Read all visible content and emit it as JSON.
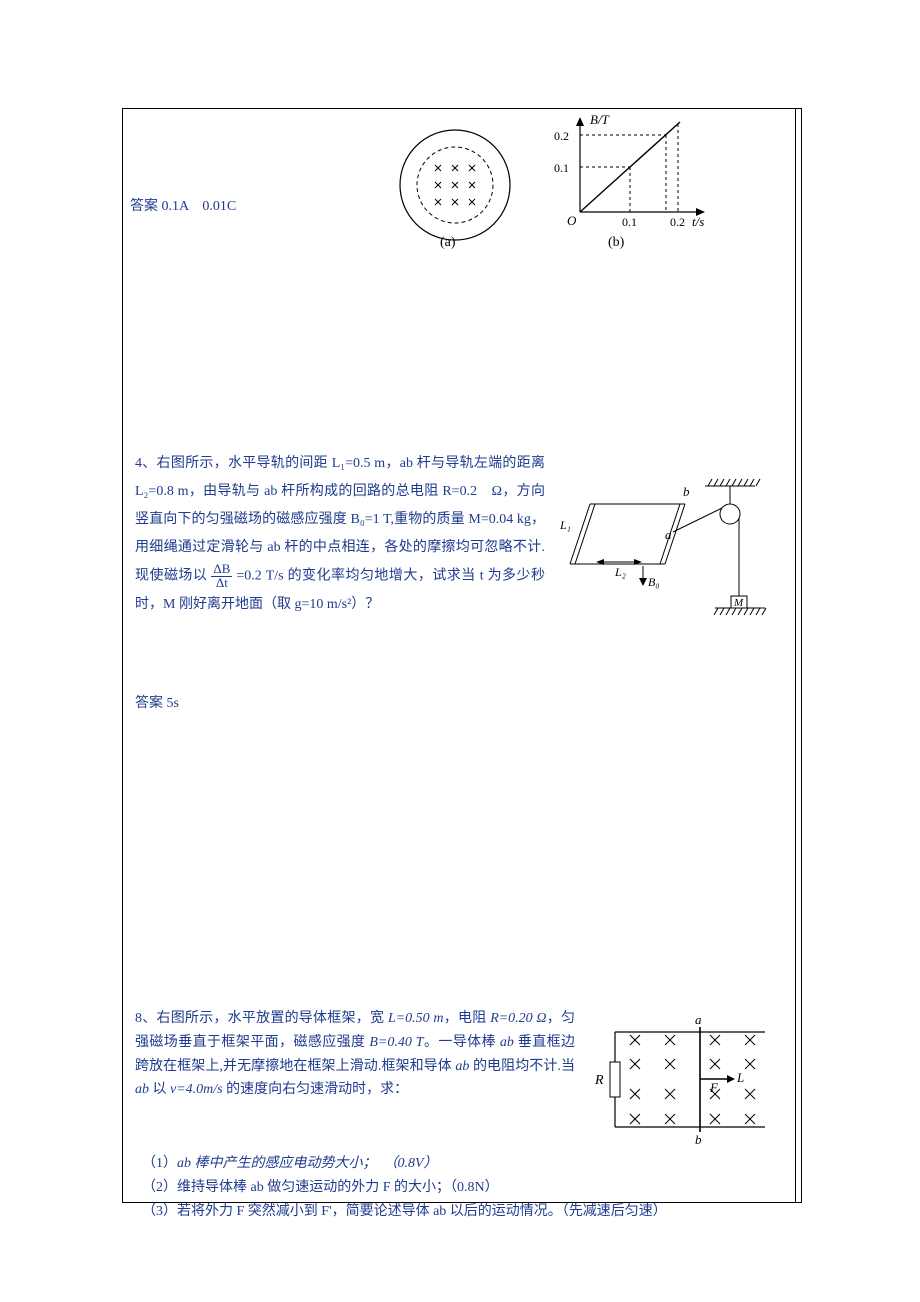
{
  "answer3": "答案 0.1A　0.01C",
  "fig_a": {
    "caption": "(a)",
    "circle_r": 55,
    "inner_r": 38,
    "stroke": "#000000",
    "dash": "4 3",
    "cross_size": 6,
    "cross_grid": [
      [
        -17,
        -17
      ],
      [
        0,
        -17
      ],
      [
        17,
        -17
      ],
      [
        -17,
        0
      ],
      [
        0,
        0
      ],
      [
        17,
        0
      ],
      [
        -17,
        17
      ],
      [
        0,
        17
      ],
      [
        17,
        17
      ]
    ]
  },
  "fig_b": {
    "caption": "(b)",
    "x_label": "t/s",
    "y_label": "B/T",
    "y_ticks": [
      "0.1",
      "0.2"
    ],
    "x_ticks": [
      "0.1",
      "0.2"
    ],
    "origin": "O",
    "axis_color": "#000000",
    "dash": "3 3",
    "line_pts": "40,100 140,10"
  },
  "q4": {
    "text_before_frac": "4、右图所示，水平导轨的间距 L₁=0.5 m，ab 杆与导轨左端的距离 L₂=0.8 m，由导轨与 ab 杆所构成的回路的总电阻 R=0.2　Ω，方向竖直向下的匀强磁场的磁感应强度 B₀=1 T,重物的质量 M=0.04 kg，用细绳通过定滑轮与 ab 杆的中点相连，各处的摩擦均可忽略不计.现使磁场以 ",
    "frac_num": "ΔB",
    "frac_den": "Δt",
    "text_after_frac": " =0.2 T/s 的变化率均匀地增大，试求当 t 为多少秒时，M 刚好离开地面（取 g=10 m/s²）？",
    "answer": "答案 5s",
    "fig": {
      "L1": "L₁",
      "L2": "L₂",
      "B0": "B₀",
      "a": "a",
      "b": "b",
      "M": "M",
      "stroke": "#000000"
    }
  },
  "q8": {
    "text_lead": "8、右图所示，水平放置的导体框架，宽 ",
    "L_val": "L=0.50 m",
    "text_2": "，电阻 ",
    "R_val": "R=0.20 Ω",
    "text_3": "，匀强磁场垂直于框架平面，磁感应强度 ",
    "B_val": "B=0.40 T",
    "text_4": "。一导体棒 ",
    "ab": "ab",
    "text_5": " 垂直框边跨放在框架上,并无摩擦地在框架上滑动.框架和导体 ",
    "text_6": " 的电阻均不计.当 ",
    "text_7": " 以 ",
    "v_val": "v=4.0m/s",
    "text_8": " 的速度向右匀速滑动时，求：",
    "sub1_pre": "（1）",
    "sub1_body": "ab 棒中产生的感应电动势大小；　（0.8V）",
    "sub2_pre": "（2）",
    "sub2_body": "维持导体棒 ab 做匀速运动的外力 F 的大小；（0.8N）",
    "sub3_pre": "（3）",
    "sub3_body": "若将外力 F 突然减小到 F'，简要论述导体 ab 以后的运动情况。（先减速后匀速）",
    "fig": {
      "R": "R",
      "a": "a",
      "b": "b",
      "F": "F",
      "L": "L",
      "cross_size": 5,
      "stroke": "#000000"
    }
  }
}
